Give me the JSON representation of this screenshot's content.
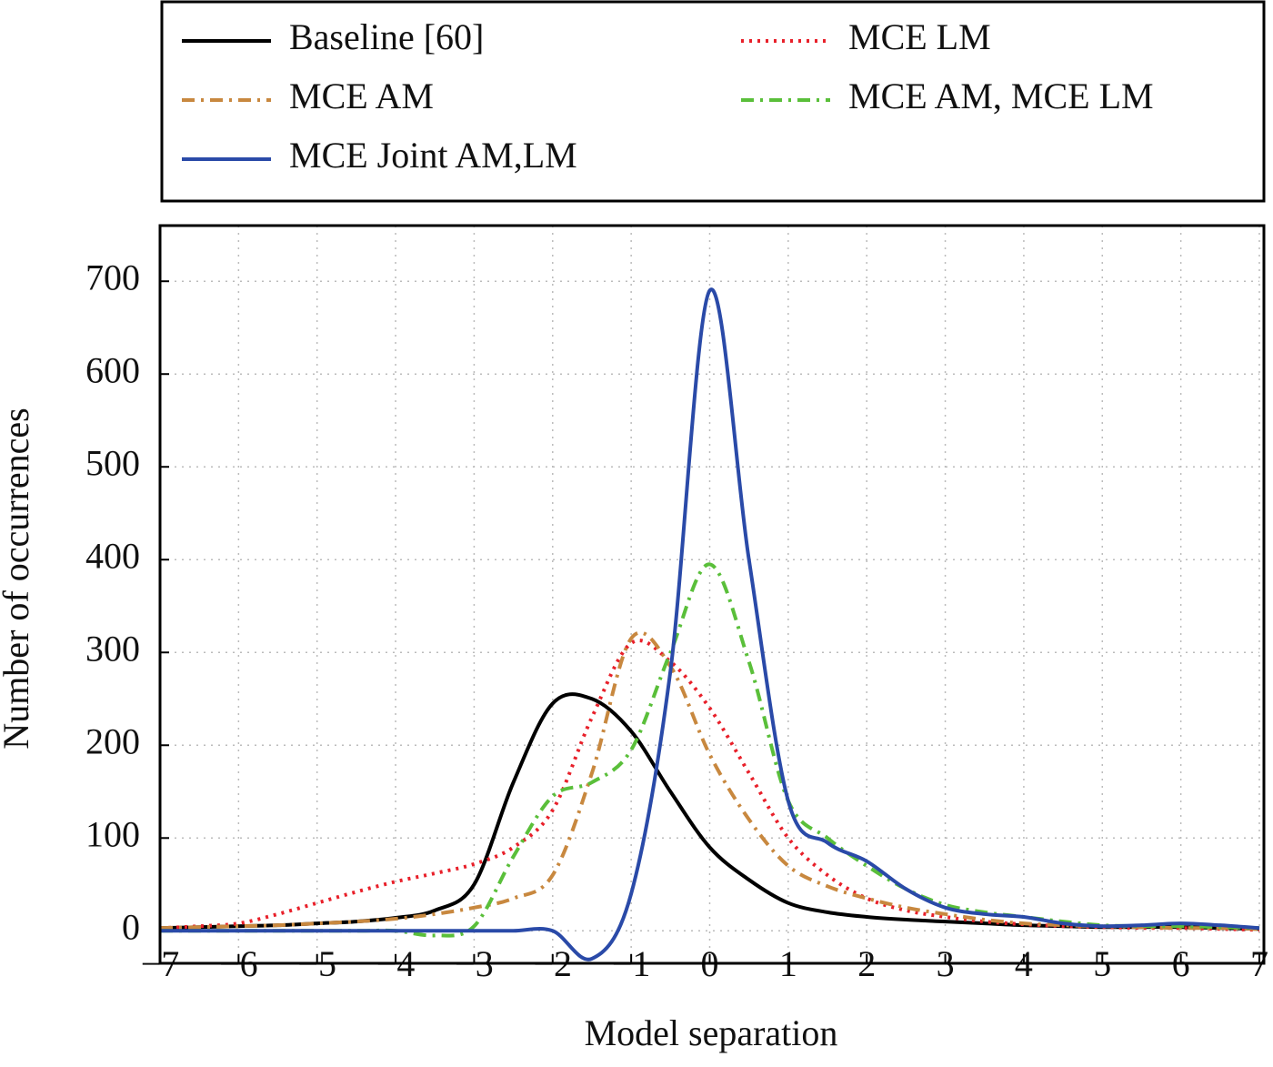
{
  "chart_data": {
    "type": "line",
    "xlabel": "Model separation",
    "ylabel": "Number of occurrences",
    "x": [
      -7,
      -6.5,
      -6,
      -5.5,
      -5,
      -4.5,
      -4,
      -3.5,
      -3,
      -2.5,
      -2,
      -1.5,
      -1,
      -0.5,
      0,
      0.5,
      1,
      1.5,
      2,
      2.5,
      3,
      3.5,
      4,
      4.5,
      5,
      5.5,
      6,
      6.5,
      7
    ],
    "series": [
      {
        "name": "Baseline [60]",
        "color": "#000000",
        "dash": "",
        "values": [
          3,
          4,
          5,
          6,
          8,
          10,
          14,
          22,
          50,
          160,
          245,
          250,
          215,
          150,
          90,
          55,
          30,
          20,
          15,
          12,
          10,
          8,
          6,
          5,
          4,
          4,
          4,
          3,
          2
        ]
      },
      {
        "name": "MCE LM",
        "color": "#e8202a",
        "dash": "3 6",
        "values": [
          3,
          5,
          8,
          18,
          30,
          42,
          53,
          62,
          72,
          90,
          130,
          230,
          310,
          290,
          240,
          170,
          100,
          60,
          35,
          22,
          15,
          10,
          7,
          5,
          4,
          3,
          3,
          2,
          1
        ]
      },
      {
        "name": "MCE AM",
        "color": "#c8883f",
        "dash": "14 7 3 7",
        "values": [
          3,
          4,
          5,
          6,
          8,
          10,
          13,
          18,
          25,
          35,
          60,
          170,
          315,
          285,
          190,
          120,
          70,
          48,
          35,
          25,
          18,
          12,
          8,
          6,
          5,
          4,
          3,
          3,
          2
        ]
      },
      {
        "name": "MCE AM, MCE LM",
        "color": "#5abf3a",
        "dash": "14 7 3 7",
        "values": [
          0,
          0,
          0,
          0,
          0,
          0,
          0,
          -5,
          5,
          80,
          145,
          160,
          195,
          300,
          395,
          290,
          140,
          100,
          70,
          45,
          28,
          20,
          15,
          10,
          6,
          5,
          5,
          4,
          3
        ]
      },
      {
        "name": "MCE Joint AM,LM",
        "color": "#2a4aa8",
        "dash": "",
        "values": [
          0,
          0,
          0,
          0,
          0,
          0,
          0,
          0,
          0,
          0,
          0,
          -30,
          40,
          280,
          690,
          400,
          140,
          95,
          75,
          45,
          25,
          18,
          15,
          8,
          5,
          6,
          8,
          6,
          3
        ]
      }
    ],
    "xlim": [
      -7,
      7
    ],
    "ylim": [
      -35,
      760
    ],
    "xticks": [
      {
        "value": -7,
        "label": "−7"
      },
      {
        "value": -6,
        "label": "−6"
      },
      {
        "value": -5,
        "label": "−5"
      },
      {
        "value": -4,
        "label": "−4"
      },
      {
        "value": -3,
        "label": "−3"
      },
      {
        "value": -2,
        "label": "−2"
      },
      {
        "value": -1,
        "label": "−1"
      },
      0,
      1,
      2,
      3,
      4,
      5,
      6,
      7
    ],
    "yticks": [
      0,
      100,
      200,
      300,
      400,
      500,
      600,
      700
    ],
    "grid": true,
    "legend": "top"
  }
}
